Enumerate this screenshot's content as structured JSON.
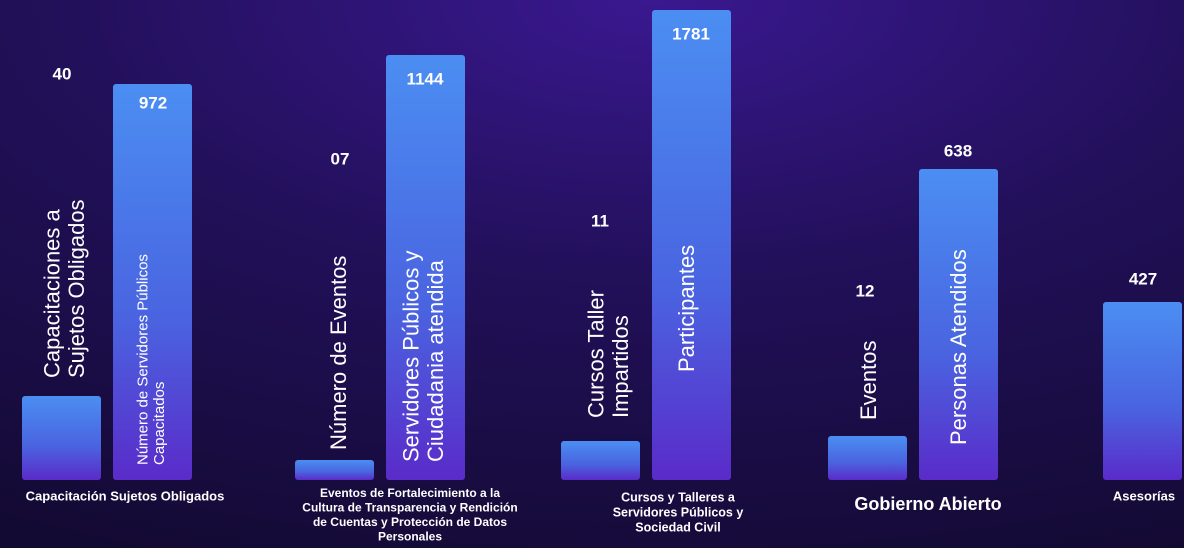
{
  "groups": [
    {
      "title": [
        "Capacitación Sujetos Obligados"
      ],
      "items": [
        {
          "value": "40",
          "label": [
            "Capacitaciones a",
            "Sujetos Obligados"
          ]
        },
        {
          "value": "972",
          "label": [
            "Número de Servidores Públicos",
            "Capacitados"
          ]
        }
      ]
    },
    {
      "title": [
        "Eventos de Fortalecimiento a la",
        "Cultura de Transparencia y Rendición",
        "de Cuentas y Protección de Datos",
        "Personales"
      ],
      "items": [
        {
          "value": "07",
          "label": [
            "Número de Eventos"
          ]
        },
        {
          "value": "1144",
          "label": [
            "Servidores Públicos y",
            "Ciudadania atendida"
          ]
        }
      ]
    },
    {
      "title": [
        "Cursos y Talleres a",
        "Servidores Públicos y",
        "Sociedad Civil"
      ],
      "items": [
        {
          "value": "11",
          "label": [
            "Cursos Taller",
            "Impartidos"
          ]
        },
        {
          "value": "1781",
          "label": [
            "Participantes"
          ]
        }
      ]
    },
    {
      "title": [
        "Gobierno Abierto"
      ],
      "items": [
        {
          "value": "12",
          "label": [
            "Eventos"
          ]
        },
        {
          "value": "638",
          "label": [
            "Personas Atendidos"
          ]
        }
      ]
    },
    {
      "title": [
        "Asesorías"
      ],
      "items": [
        {
          "value": "427"
        }
      ]
    }
  ]
}
